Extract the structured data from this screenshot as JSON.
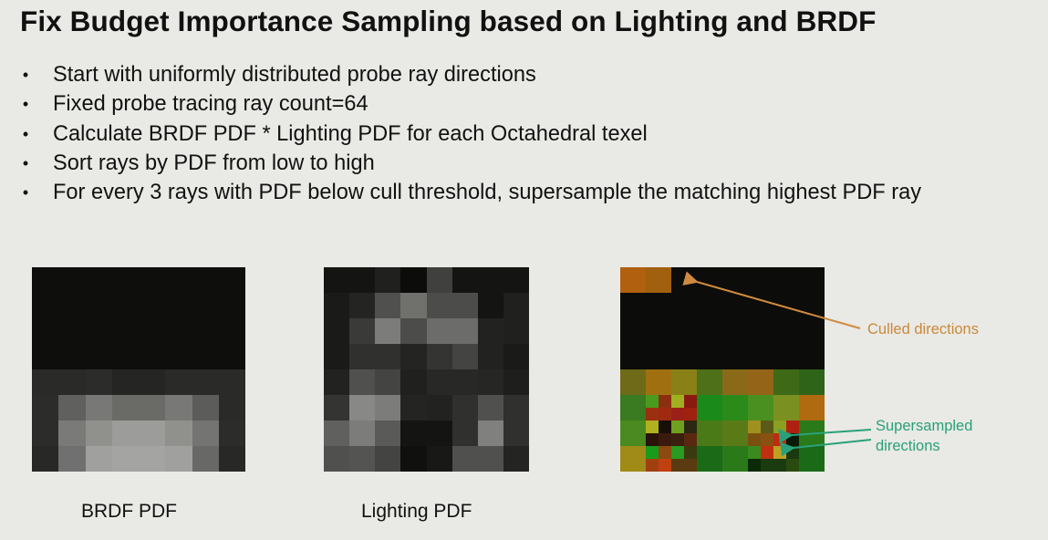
{
  "slide": {
    "title": "Fix Budget Importance Sampling based on Lighting and BRDF",
    "bullets": [
      "Start with uniformly distributed probe ray directions",
      "Fixed probe tracing ray count=64",
      "Calculate BRDF PDF * Lighting PDF for each Octahedral texel",
      "Sort rays by PDF from low to high",
      "For every 3 rays with PDF below cull threshold, supersample the matching highest PDF ray"
    ]
  },
  "figures": {
    "brdf": {
      "caption": "BRDF PDF",
      "cells": [
        [
          "#0e0e0c",
          "#0e0e0c",
          "#0e0e0c",
          "#0e0e0c",
          "#0e0e0c",
          "#0e0e0c",
          "#0e0e0c",
          "#0e0e0c"
        ],
        [
          "#0e0e0c",
          "#0e0e0c",
          "#0e0e0c",
          "#0e0e0c",
          "#0e0e0c",
          "#0e0e0c",
          "#0e0e0c",
          "#0e0e0c"
        ],
        [
          "#0e0e0c",
          "#0e0e0c",
          "#0e0e0c",
          "#0e0e0c",
          "#0e0e0c",
          "#0e0e0c",
          "#0e0e0c",
          "#0e0e0c"
        ],
        [
          "#0e0e0c",
          "#0e0e0c",
          "#0e0e0c",
          "#0e0e0c",
          "#0e0e0c",
          "#0e0e0c",
          "#0e0e0c",
          "#0e0e0c"
        ],
        [
          "#2a2a28",
          "#2a2a28",
          "#2c2c2a",
          "#252523",
          "#252523",
          "#2a2a28",
          "#2a2a28",
          "#2a2a28"
        ],
        [
          "#2c2c2a",
          "#60605e",
          "#787876",
          "#6a6a66",
          "#6a6a66",
          "#787876",
          "#5c5c5a",
          "#2a2a28"
        ],
        [
          "#2c2c2a",
          "#7a7a78",
          "#90908c",
          "#9c9c9a",
          "#9c9c9a",
          "#90908c",
          "#747472",
          "#2c2c2a"
        ],
        [
          "#282826",
          "#707070",
          "#a0a09e",
          "#a4a4a2",
          "#a4a4a2",
          "#a0a09e",
          "#686866",
          "#282826"
        ]
      ]
    },
    "lighting": {
      "caption": "Lighting PDF",
      "cells": [
        [
          "#141412",
          "#141412",
          "#20201e",
          "#0c0c0a",
          "#40403e",
          "#141412",
          "#141412",
          "#141412"
        ],
        [
          "#1a1a18",
          "#242422",
          "#50504e",
          "#70706c",
          "#4c4c4a",
          "#4c4c4a",
          "#141412",
          "#20201e"
        ],
        [
          "#1a1a18",
          "#3a3a38",
          "#7c7c7a",
          "#4c4c4a",
          "#6c6c6a",
          "#6c6c6a",
          "#222220",
          "#20201e"
        ],
        [
          "#1a1a18",
          "#30302e",
          "#30302e",
          "#242422",
          "#343432",
          "#444442",
          "#222220",
          "#1a1a18"
        ],
        [
          "#222220",
          "#50504e",
          "#444442",
          "#20201e",
          "#282826",
          "#282826",
          "#262624",
          "#1e1e1c"
        ],
        [
          "#343432",
          "#888886",
          "#7c7c7a",
          "#242422",
          "#222220",
          "#30302e",
          "#50504e",
          "#30302e"
        ],
        [
          "#60605e",
          "#7c7c7a",
          "#5a5a58",
          "#141412",
          "#141412",
          "#30302e",
          "#80807e",
          "#30302e"
        ],
        [
          "#50504e",
          "#545452",
          "#444442",
          "#10100e",
          "#181816",
          "#50504e",
          "#50504e",
          "#242422"
        ]
      ]
    },
    "combined": {
      "cells": [
        [
          "#b0600e",
          "#a0600e",
          "#0c0c0a",
          "#0c0c0a",
          "#0c0c0a",
          "#0c0c0a",
          "#0c0c0a",
          "#0c0c0a"
        ],
        [
          "#0c0c0a",
          "#0c0c0a",
          "#0c0c0a",
          "#0c0c0a",
          "#0c0c0a",
          "#0c0c0a",
          "#0c0c0a",
          "#0c0c0a"
        ],
        [
          "#0c0c0a",
          "#0c0c0a",
          "#0c0c0a",
          "#0c0c0a",
          "#0c0c0a",
          "#0c0c0a",
          "#0c0c0a",
          "#0c0c0a"
        ],
        [
          "#0c0c0a",
          "#0c0c0a",
          "#0c0c0a",
          "#0c0c0a",
          "#0c0c0a",
          "#0c0c0a",
          "#0c0c0a",
          "#0c0c0a"
        ],
        [
          "#6e6a18",
          "#a07010",
          "#8a8018",
          "#4e7018",
          "#8a6a18",
          "#946418",
          "#3e6a18",
          "#2e6418"
        ],
        [
          "#3a7a20",
          [
            "#4a9a20",
            "#8a3010",
            "#9a3010",
            "#a02a10"
          ],
          [
            "#a0b020",
            "#8a1a10",
            "#9a2018",
            "#a02010"
          ],
          "#1a8a1a",
          "#2a8a1a",
          "#4a9020",
          "#7a9020",
          "#b06a10"
        ],
        [
          "#4a8a20",
          [
            "#b0b020",
            "#181008",
            "#2a1208",
            "#3a1a0e"
          ],
          [
            "#70a020",
            "#2a2810",
            "#3a200e",
            "#5a2810"
          ],
          "#4a7a18",
          "#5a7a18",
          [
            "#a09020",
            "#5a5a18",
            "#7a5010",
            "#8a5010"
          ],
          [
            "#8aa020",
            "#b02010",
            "#c02a10",
            "#0a1a08"
          ],
          "#2a7a1a"
        ],
        [
          "#a08a18",
          [
            "#1a9a1a",
            "#8a4a10",
            "#a04010",
            "#c04010"
          ],
          [
            "#2a9a20",
            "#3a3a10",
            "#5a3a10",
            "#5a3a10"
          ],
          "#1a6a18",
          "#2a7a1a",
          [
            "#3a8a20",
            "#c03010",
            "#0a2a08",
            "#1a3a10"
          ],
          [
            "#c0a020",
            "#1a3a0e",
            "#1a3a10",
            "#2a4a10"
          ],
          "#1a6a18"
        ]
      ],
      "annotations": {
        "culled": "Culled directions",
        "supersampled_line1": "Supersampled",
        "supersampled_line2": "directions"
      },
      "colors": {
        "culled": "#c98a3a",
        "supersampled": "#2aa07a"
      }
    }
  }
}
